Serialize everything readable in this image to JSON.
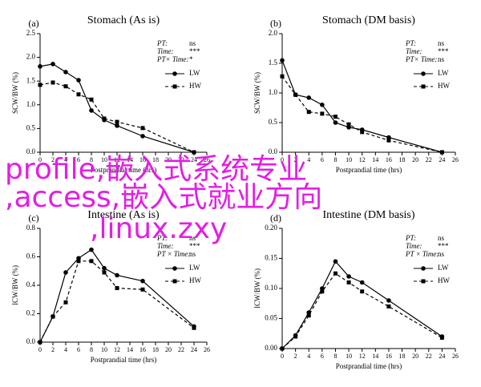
{
  "chart_data": [
    {
      "type": "line",
      "panel": "(a)",
      "title": "Stomach (As is)",
      "y_label": "SCW/BW (%)",
      "x_label": "Postprandial time (hrs)",
      "stats": [
        {
          "label": "PT:",
          "value": "ns"
        },
        {
          "label": "Time:",
          "value": "***"
        },
        {
          "label": "PT× Time:",
          "value": "*"
        }
      ],
      "x": [
        0,
        2,
        4,
        6,
        8,
        10,
        12,
        16,
        24
      ],
      "series": [
        {
          "name": "LW",
          "color": "#000000",
          "dash": false,
          "marker": "circle",
          "values": [
            1.81,
            1.86,
            1.69,
            1.52,
            0.88,
            0.68,
            0.56,
            0.34,
            0
          ]
        },
        {
          "name": "HW",
          "color": "#000000",
          "dash": true,
          "marker": "square",
          "values": [
            1.42,
            1.47,
            1.39,
            1.22,
            1.11,
            0.71,
            0.64,
            0.51,
            0
          ]
        }
      ],
      "xlim": [
        0,
        26
      ],
      "xticks": [
        0,
        2,
        4,
        6,
        8,
        10,
        12,
        14,
        16,
        18,
        20,
        22,
        24,
        26
      ],
      "ylim": [
        0,
        2.5
      ],
      "yticks": [
        {
          "value": 0,
          "label": "0.0"
        },
        0.5,
        {
          "value": 1,
          "label": "1.0"
        },
        1.5,
        {
          "value": 2,
          "label": "2.0"
        },
        2.5
      ]
    },
    {
      "type": "line",
      "panel": "(b)",
      "title": "Stomach (DM basis)",
      "y_label": "SCW/BW (%)",
      "x_label": "Postprandial time (hrs)",
      "stats": [
        {
          "label": "PT:",
          "value": "ns"
        },
        {
          "label": "Time:",
          "value": "***"
        },
        {
          "label": "PT× Time:",
          "value": "ns"
        }
      ],
      "x": [
        0,
        2,
        4,
        6,
        8,
        10,
        12,
        16,
        24
      ],
      "series": [
        {
          "name": "LW",
          "color": "#000000",
          "dash": false,
          "marker": "circle",
          "values": [
            1.55,
            0.97,
            0.92,
            0.8,
            0.5,
            0.42,
            0.38,
            0.25,
            0
          ]
        },
        {
          "name": "HW",
          "color": "#000000",
          "dash": true,
          "marker": "square",
          "values": [
            1.28,
            0.97,
            0.68,
            0.65,
            0.6,
            0.47,
            0.34,
            0.2,
            0
          ]
        }
      ],
      "xlim": [
        0,
        26
      ],
      "xticks": [
        0,
        2,
        4,
        6,
        8,
        10,
        12,
        14,
        16,
        18,
        20,
        22,
        24,
        26
      ],
      "ylim": [
        0,
        2
      ],
      "yticks": [
        {
          "value": 0,
          "label": "0.0"
        },
        0.5,
        {
          "value": 1,
          "label": "1.0"
        },
        1.5,
        {
          "value": 2,
          "label": "2.0"
        }
      ]
    },
    {
      "type": "line",
      "panel": "(c)",
      "title": "Intestine (As is)",
      "y_label": "ICW/BW (%)",
      "x_label": "Postprandial time (hrs)",
      "stats": [
        {
          "label": "PT:",
          "value": "ns"
        },
        {
          "label": "Time:",
          "value": "***"
        },
        {
          "label": "PT × Time:",
          "value": "ns"
        }
      ],
      "x": [
        0,
        2,
        4,
        6,
        8,
        10,
        12,
        16,
        24
      ],
      "series": [
        {
          "name": "LW",
          "color": "#000000",
          "dash": false,
          "marker": "circle",
          "values": [
            0,
            0.18,
            0.49,
            0.59,
            0.65,
            0.52,
            0.47,
            0.43,
            0.11
          ]
        },
        {
          "name": "HW",
          "color": "#000000",
          "dash": true,
          "marker": "square",
          "values": [
            0,
            0.18,
            0.28,
            0.57,
            0.57,
            0.49,
            0.38,
            0.37,
            0.1
          ]
        }
      ],
      "xlim": [
        0,
        26
      ],
      "xticks": [
        0,
        2,
        4,
        6,
        8,
        10,
        12,
        14,
        16,
        18,
        20,
        22,
        24,
        26
      ],
      "ylim": [
        0,
        0.8
      ],
      "yticks": [
        {
          "value": 0,
          "label": "0.0"
        },
        0.2,
        0.4,
        0.6,
        0.8
      ]
    },
    {
      "type": "line",
      "panel": "(d)",
      "title": "Intestine (DM basis)",
      "y_label": "ICW/BW (%)",
      "x_label": "Postprandial time (hrs)",
      "stats": [
        {
          "label": "PT:",
          "value": "ns"
        },
        {
          "label": "Time:",
          "value": "***"
        },
        {
          "label": "PT × Time:",
          "value": "ns"
        }
      ],
      "x": [
        0,
        2,
        4,
        6,
        8,
        10,
        12,
        16,
        24
      ],
      "series": [
        {
          "name": "LW",
          "color": "#000000",
          "dash": false,
          "marker": "circle",
          "values": [
            0,
            0.022,
            0.06,
            0.1,
            0.145,
            0.12,
            0.11,
            0.08,
            0.02
          ]
        },
        {
          "name": "HW",
          "color": "#000000",
          "dash": true,
          "marker": "square",
          "values": [
            0,
            0.02,
            0.055,
            0.095,
            0.125,
            0.11,
            0.095,
            0.07,
            0.018
          ]
        }
      ],
      "xlim": [
        0,
        26
      ],
      "xticks": [
        0,
        2,
        4,
        6,
        8,
        10,
        12,
        14,
        16,
        18,
        20,
        22,
        24,
        26
      ],
      "ylim": [
        0,
        0.2
      ],
      "yticks": [
        {
          "value": 0,
          "label": "0.00"
        },
        0.05,
        {
          "value": 0.1,
          "label": "0.10"
        },
        0.15,
        {
          "value": 0.2,
          "label": "0.20"
        }
      ]
    }
  ],
  "overlay_text": [
    "profile,嵌入式系统专业",
    ",access,嵌入式就业方向",
    ",linux.zxy"
  ]
}
